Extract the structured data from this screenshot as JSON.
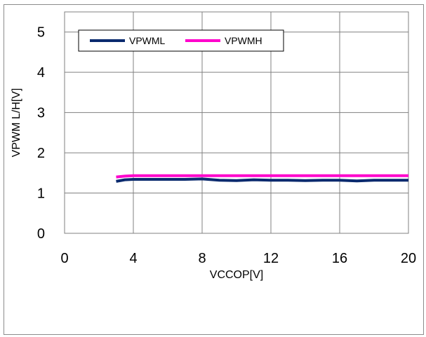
{
  "chart_data": {
    "type": "line",
    "xlabel": "VCCOP[V]",
    "ylabel": "VPWM L/H[V]",
    "xlim": [
      0,
      20
    ],
    "ylim": [
      0,
      5.5
    ],
    "x_ticks": [
      "0",
      "4",
      "8",
      "12",
      "16",
      "20"
    ],
    "y_ticks": [
      "0",
      "1",
      "2",
      "3",
      "4",
      "5"
    ],
    "grid": true,
    "legend_position": "top-left",
    "series": [
      {
        "name": "VPWML",
        "color": "#0a2a6e",
        "x": [
          3.0,
          3.5,
          4,
          5,
          6,
          7,
          8,
          9,
          10,
          11,
          12,
          13,
          14,
          15,
          16,
          17,
          18,
          19,
          20
        ],
        "y": [
          1.29,
          1.33,
          1.34,
          1.34,
          1.34,
          1.34,
          1.35,
          1.32,
          1.31,
          1.33,
          1.32,
          1.32,
          1.31,
          1.32,
          1.32,
          1.3,
          1.32,
          1.32,
          1.32
        ]
      },
      {
        "name": "VPWMH",
        "color": "#ff00cc",
        "x": [
          3.0,
          3.5,
          4,
          5,
          6,
          7,
          8,
          9,
          10,
          11,
          12,
          13,
          14,
          15,
          16,
          17,
          18,
          19,
          20
        ],
        "y": [
          1.4,
          1.42,
          1.43,
          1.43,
          1.43,
          1.43,
          1.43,
          1.43,
          1.43,
          1.43,
          1.43,
          1.43,
          1.43,
          1.43,
          1.43,
          1.43,
          1.43,
          1.43,
          1.43
        ]
      }
    ]
  }
}
